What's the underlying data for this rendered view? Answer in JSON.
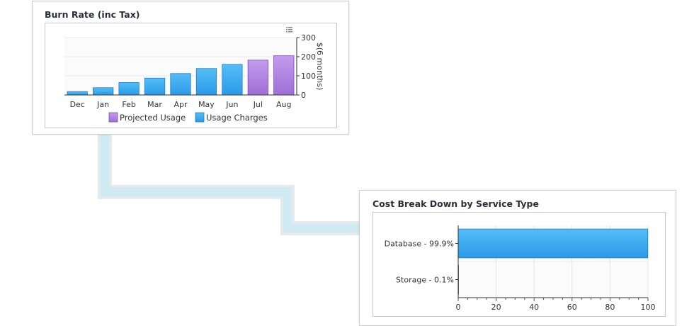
{
  "burn_panel": {
    "title": "Burn Rate (inc Tax)",
    "menu_icon": "chart-menu-icon"
  },
  "cost_panel": {
    "title": "Cost Break Down by Service Type"
  },
  "colors": {
    "usage": "#2a9ae8",
    "usage_light": "#55bdf7",
    "projected": "#9f6fd6",
    "projected_light": "#c39bee",
    "connector": "#cfeaf2",
    "connector_edge": "#e4e8ea"
  },
  "chart_data": [
    {
      "type": "bar",
      "title": "Burn Rate (inc Tax)",
      "categories": [
        "Dec",
        "Jan",
        "Feb",
        "Mar",
        "Apr",
        "May",
        "Jun",
        "Jul",
        "Aug"
      ],
      "series": [
        {
          "name": "Usage Charges",
          "values": [
            18,
            38,
            65,
            88,
            112,
            138,
            160,
            null,
            null
          ]
        },
        {
          "name": "Projected Usage",
          "values": [
            null,
            null,
            null,
            null,
            null,
            null,
            null,
            182,
            205
          ]
        }
      ],
      "legend_order": [
        "Projected Usage",
        "Usage Charges"
      ],
      "ylabel": "$(6 months)",
      "ylim": [
        0,
        300
      ],
      "yticks": [
        0,
        100,
        200,
        300
      ],
      "yaxis_position": "right",
      "legend": "bottom",
      "grid": true
    },
    {
      "type": "bar",
      "orientation": "horizontal",
      "title": "Cost Break Down by Service Type",
      "categories": [
        "Database - 99.9%",
        "Storage - 0.1%"
      ],
      "values": [
        99.9,
        0.1
      ],
      "xlim": [
        0,
        100
      ],
      "xticks": [
        0,
        20,
        40,
        60,
        80,
        100
      ],
      "grid": true
    }
  ]
}
